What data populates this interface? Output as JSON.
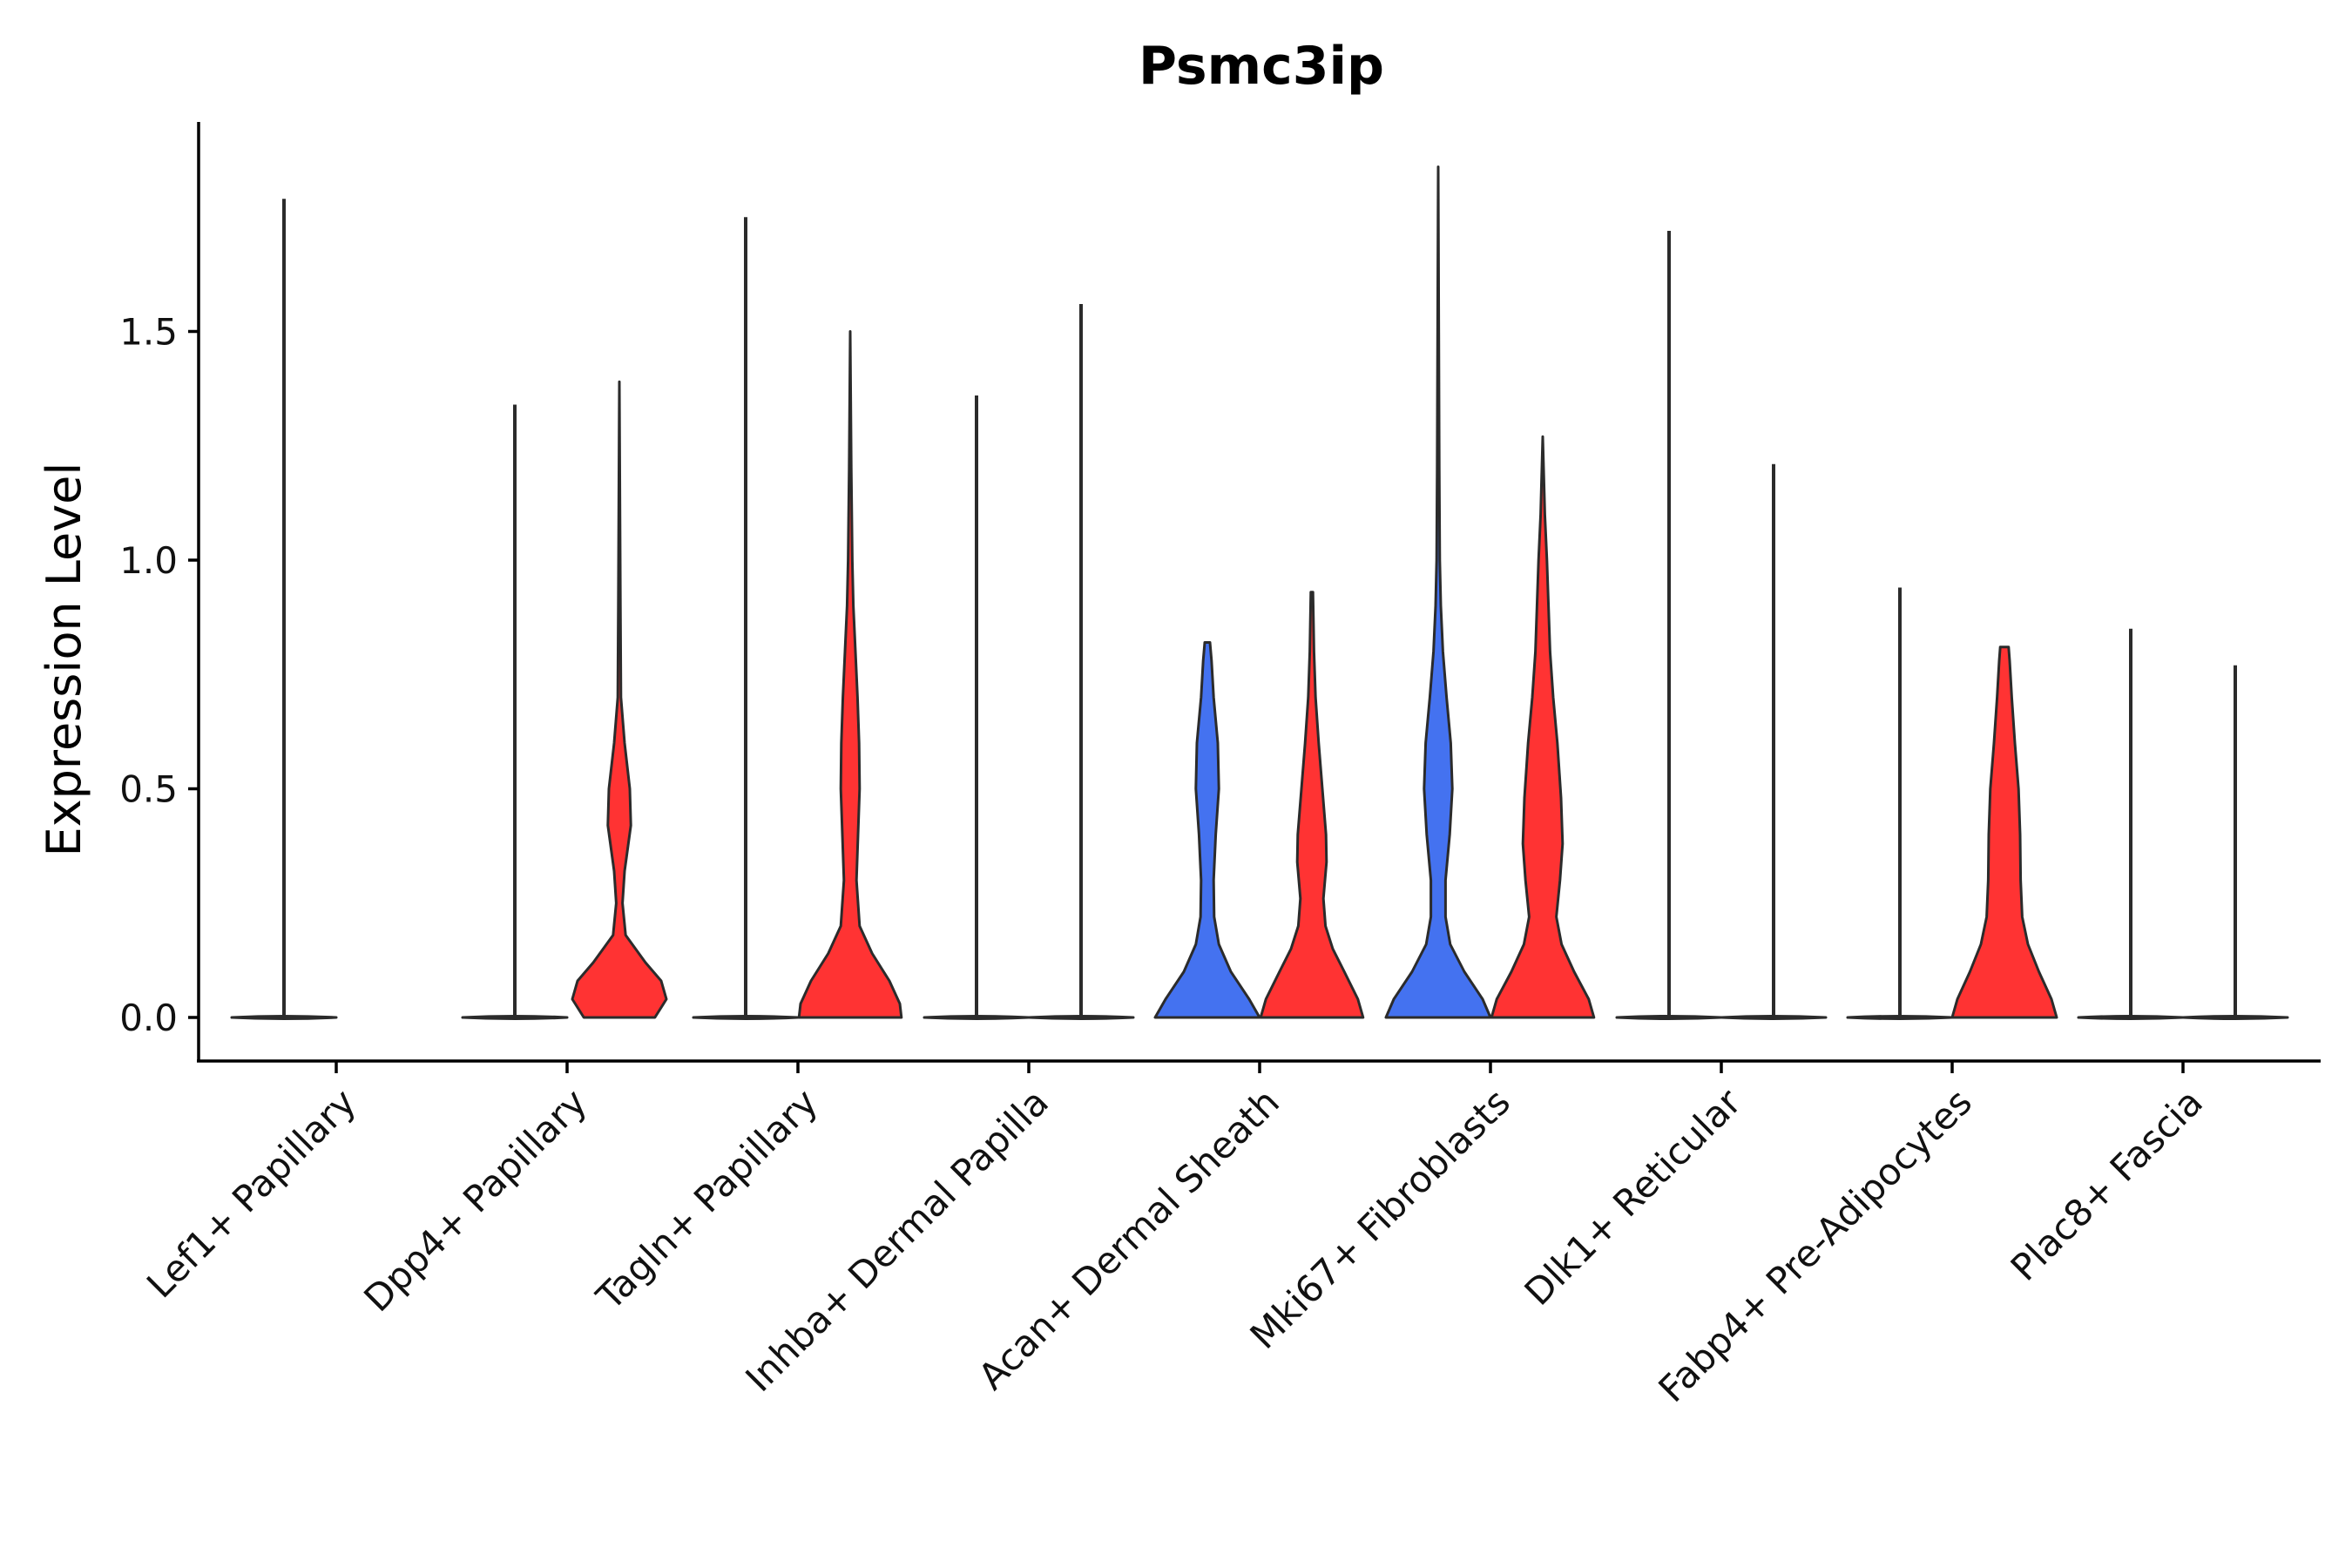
{
  "chart_data": {
    "type": "violin",
    "title": "Psmc3ip",
    "xlabel": "",
    "ylabel": "Expression Level",
    "ylim": [
      -0.09,
      1.95
    ],
    "yticks": [
      0.0,
      0.5,
      1.0,
      1.5
    ],
    "ytick_labels": [
      "0.0",
      "0.5",
      "1.0",
      "1.5"
    ],
    "grid": false,
    "legend": "none",
    "colors": {
      "blue": "#4472F0",
      "red": "#FF3333",
      "outline": "#2b2b2b"
    },
    "categories": [
      "Lef1+ Papillary",
      "Dpp4+ Papillary",
      "Tagln+ Papillary",
      "Inhba+ Dermal Papilla",
      "Acan+ Dermal Sheath",
      "Mki67+ Fibroblasts",
      "Dlk1+ Reticular",
      "Fabp4+ Pre-Adipocytes",
      "Plac8+ Fascia"
    ],
    "violins": [
      {
        "category": "Lef1+ Papillary",
        "side": "left",
        "color": "blue",
        "max": 1.79,
        "shape": "flat"
      },
      {
        "category": "Dpp4+ Papillary",
        "side": "left",
        "color": "blue",
        "max": 1.34,
        "shape": "flat"
      },
      {
        "category": "Dpp4+ Papillary",
        "side": "right",
        "color": "red",
        "max": 1.39,
        "shape": [
          [
            0,
            0.68
          ],
          [
            0.04,
            0.9
          ],
          [
            0.08,
            0.8
          ],
          [
            0.12,
            0.5
          ],
          [
            0.18,
            0.12
          ],
          [
            0.25,
            0.06
          ],
          [
            0.32,
            0.1
          ],
          [
            0.42,
            0.22
          ],
          [
            0.5,
            0.2
          ],
          [
            0.6,
            0.1
          ],
          [
            0.7,
            0.03
          ],
          [
            0.9,
            0.02
          ],
          [
            1.39,
            0
          ]
        ]
      },
      {
        "category": "Tagln+ Papillary",
        "side": "left",
        "color": "blue",
        "max": 1.75,
        "shape": "flat"
      },
      {
        "category": "Tagln+ Papillary",
        "side": "right",
        "color": "red",
        "max": 1.5,
        "shape": [
          [
            0,
            0.98
          ],
          [
            0.03,
            0.95
          ],
          [
            0.08,
            0.75
          ],
          [
            0.14,
            0.42
          ],
          [
            0.2,
            0.18
          ],
          [
            0.3,
            0.12
          ],
          [
            0.4,
            0.15
          ],
          [
            0.5,
            0.18
          ],
          [
            0.6,
            0.17
          ],
          [
            0.7,
            0.14
          ],
          [
            0.8,
            0.1
          ],
          [
            0.9,
            0.06
          ],
          [
            1.0,
            0.04
          ],
          [
            1.2,
            0.02
          ],
          [
            1.5,
            0
          ]
        ]
      },
      {
        "category": "Inhba+ Dermal Papilla",
        "side": "left",
        "color": "blue",
        "max": 1.36,
        "shape": "flat"
      },
      {
        "category": "Inhba+ Dermal Papilla",
        "side": "right",
        "color": "red",
        "max": 1.56,
        "shape": "flat"
      },
      {
        "category": "Acan+ Dermal Sheath",
        "side": "left",
        "color": "blue",
        "max": 0.82,
        "shape": [
          [
            0,
            1.0
          ],
          [
            0.04,
            0.8
          ],
          [
            0.1,
            0.45
          ],
          [
            0.16,
            0.22
          ],
          [
            0.22,
            0.13
          ],
          [
            0.3,
            0.12
          ],
          [
            0.4,
            0.16
          ],
          [
            0.5,
            0.22
          ],
          [
            0.6,
            0.2
          ],
          [
            0.7,
            0.12
          ],
          [
            0.78,
            0.08
          ],
          [
            0.82,
            0.05
          ]
        ]
      },
      {
        "category": "Acan+ Dermal Sheath",
        "side": "right",
        "color": "red",
        "max": 0.93,
        "shape": [
          [
            0,
            0.98
          ],
          [
            0.04,
            0.88
          ],
          [
            0.1,
            0.62
          ],
          [
            0.15,
            0.4
          ],
          [
            0.2,
            0.26
          ],
          [
            0.26,
            0.22
          ],
          [
            0.34,
            0.28
          ],
          [
            0.4,
            0.27
          ],
          [
            0.5,
            0.2
          ],
          [
            0.6,
            0.13
          ],
          [
            0.7,
            0.07
          ],
          [
            0.8,
            0.04
          ],
          [
            0.93,
            0.02
          ]
        ]
      },
      {
        "category": "Mki67+ Fibroblasts",
        "side": "left",
        "color": "blue",
        "max": 1.86,
        "shape": [
          [
            0,
            1.0
          ],
          [
            0.04,
            0.85
          ],
          [
            0.1,
            0.5
          ],
          [
            0.16,
            0.23
          ],
          [
            0.22,
            0.14
          ],
          [
            0.3,
            0.14
          ],
          [
            0.4,
            0.22
          ],
          [
            0.5,
            0.27
          ],
          [
            0.6,
            0.24
          ],
          [
            0.7,
            0.16
          ],
          [
            0.8,
            0.09
          ],
          [
            0.9,
            0.05
          ],
          [
            1.0,
            0.03
          ],
          [
            1.2,
            0.02
          ],
          [
            1.86,
            0
          ]
        ]
      },
      {
        "category": "Mki67+ Fibroblasts",
        "side": "right",
        "color": "red",
        "max": 1.27,
        "shape": [
          [
            0,
            0.98
          ],
          [
            0.04,
            0.88
          ],
          [
            0.1,
            0.6
          ],
          [
            0.16,
            0.36
          ],
          [
            0.22,
            0.26
          ],
          [
            0.3,
            0.33
          ],
          [
            0.38,
            0.38
          ],
          [
            0.48,
            0.35
          ],
          [
            0.6,
            0.28
          ],
          [
            0.7,
            0.2
          ],
          [
            0.8,
            0.14
          ],
          [
            0.9,
            0.11
          ],
          [
            1.0,
            0.08
          ],
          [
            1.1,
            0.04
          ],
          [
            1.27,
            0
          ]
        ]
      },
      {
        "category": "Dlk1+ Reticular",
        "side": "left",
        "color": "blue",
        "max": 1.72,
        "shape": "flat"
      },
      {
        "category": "Dlk1+ Reticular",
        "side": "right",
        "color": "red",
        "max": 1.21,
        "shape": "flat"
      },
      {
        "category": "Fabp4+ Pre-Adipocytes",
        "side": "left",
        "color": "blue",
        "max": 0.94,
        "shape": "flat"
      },
      {
        "category": "Fabp4+ Pre-Adipocytes",
        "side": "right",
        "color": "red",
        "max": 0.81,
        "shape": [
          [
            0,
            1.0
          ],
          [
            0.04,
            0.9
          ],
          [
            0.1,
            0.66
          ],
          [
            0.16,
            0.45
          ],
          [
            0.22,
            0.34
          ],
          [
            0.3,
            0.31
          ],
          [
            0.4,
            0.3
          ],
          [
            0.5,
            0.27
          ],
          [
            0.6,
            0.2
          ],
          [
            0.7,
            0.14
          ],
          [
            0.78,
            0.1
          ],
          [
            0.81,
            0.08
          ]
        ]
      },
      {
        "category": "Plac8+ Fascia",
        "side": "left",
        "color": "blue",
        "max": 0.85,
        "shape": "flat"
      },
      {
        "category": "Plac8+ Fascia",
        "side": "right",
        "color": "red",
        "max": 0.77,
        "shape": "flat"
      }
    ]
  }
}
